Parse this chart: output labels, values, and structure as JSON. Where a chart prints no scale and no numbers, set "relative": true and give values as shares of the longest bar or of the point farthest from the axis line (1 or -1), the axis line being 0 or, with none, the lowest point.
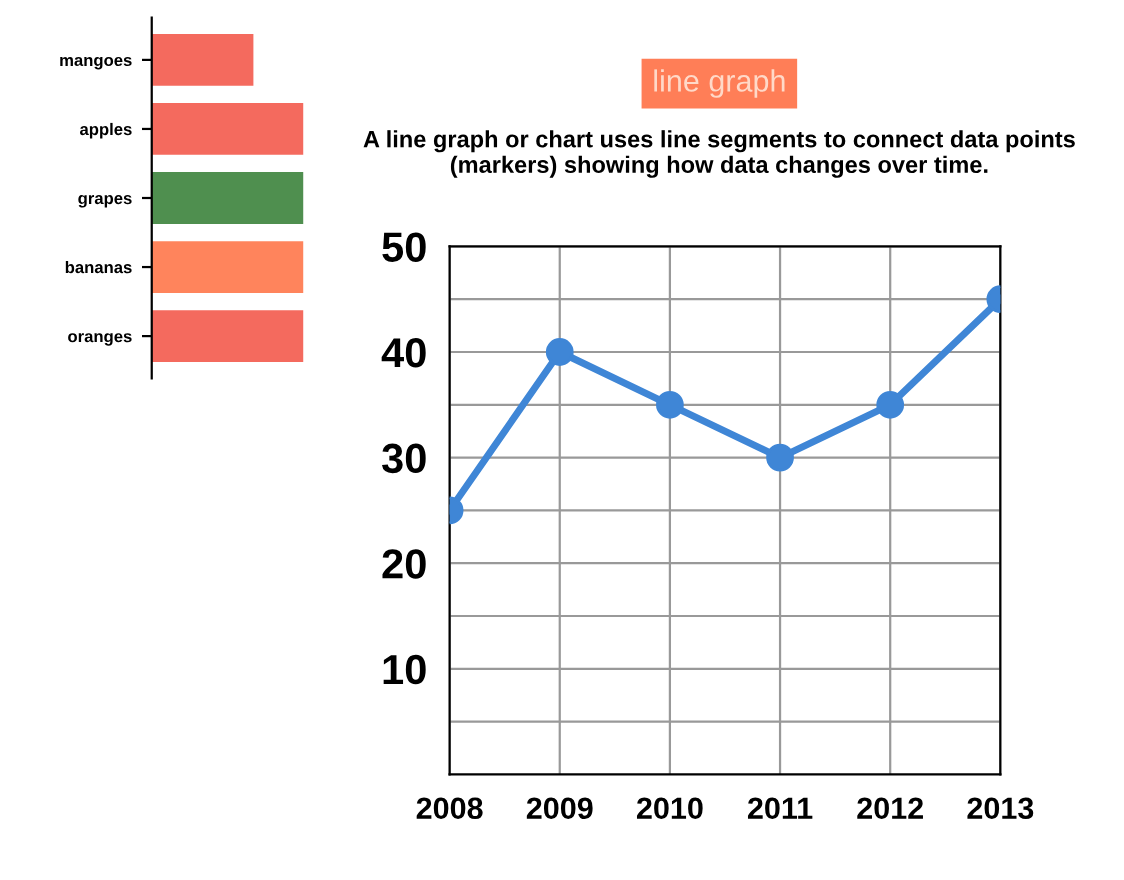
{
  "chart_data": [
    {
      "type": "bar",
      "orientation": "horizontal",
      "relative": true,
      "categories": [
        "mangoes",
        "apples",
        "grapes",
        "bananas",
        "oranges"
      ],
      "values": [
        0.67,
        1,
        1,
        1,
        1
      ],
      "colors": [
        "#f46a5e",
        "#f46a5e",
        "#4f8f4f",
        "#ff845c",
        "#f46a5e"
      ],
      "grid": false,
      "legend": false
    },
    {
      "type": "line",
      "title": "line graph",
      "subtitle": "A line graph or chart uses line segments to connect data points (markers) showing how data changes over time.",
      "categories": [
        "2008",
        "2009",
        "2010",
        "2011",
        "2012",
        "2013"
      ],
      "series": [
        {
          "color": "#3f86d6",
          "values": [
            25,
            40,
            35,
            30,
            35,
            45
          ]
        }
      ],
      "ylim": [
        0,
        50
      ],
      "yticks": [
        {
          "value": 5,
          "label": null
        },
        10,
        {
          "value": 15,
          "label": null
        },
        20,
        {
          "value": 25,
          "label": null
        },
        30,
        {
          "value": 35,
          "label": null
        },
        40,
        {
          "value": 45,
          "label": null
        },
        50
      ],
      "grid": true,
      "marker": "circle",
      "line_style": "solid",
      "legend": false
    }
  ]
}
